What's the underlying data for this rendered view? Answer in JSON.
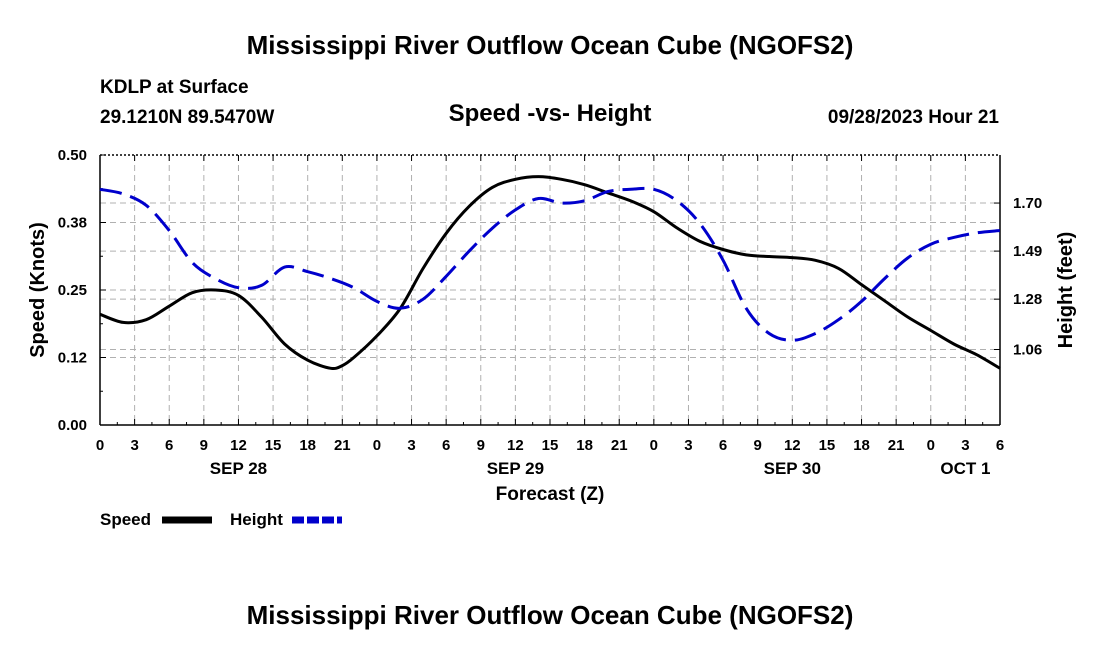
{
  "chart_data": {
    "type": "line",
    "title": "Mississippi River Outflow Ocean Cube (NGOFS2)",
    "footer_title": "Mississippi River Outflow Ocean Cube (NGOFS2)",
    "station": "KDLP at Surface",
    "location": "29.1210N  89.5470W",
    "subtitle": "Speed -vs- Height",
    "datetime": "09/28/2023 Hour 21",
    "xlabel": "Forecast (Z)",
    "ylabel_left": "Speed (Knots)",
    "ylabel_right": "Height (feet)",
    "x_hours_range": [
      0,
      78
    ],
    "x_tick_labels": [
      "0",
      "3",
      "6",
      "9",
      "12",
      "15",
      "18",
      "21",
      "0",
      "3",
      "6",
      "9",
      "12",
      "15",
      "18",
      "21",
      "0",
      "3",
      "6",
      "9",
      "12",
      "15",
      "18",
      "21",
      "0",
      "3",
      "6"
    ],
    "date_labels": [
      {
        "hour": 12,
        "label": "SEP 28"
      },
      {
        "hour": 36,
        "label": "SEP 29"
      },
      {
        "hour": 60,
        "label": "SEP 30"
      },
      {
        "hour": 75,
        "label": "OCT 1"
      }
    ],
    "ylim_left": [
      0,
      0.5
    ],
    "y_ticks_left": [
      {
        "value": 0.0,
        "label": "0.00"
      },
      {
        "value": 0.125,
        "label": "0.12"
      },
      {
        "value": 0.25,
        "label": "0.25"
      },
      {
        "value": 0.375,
        "label": "0.38"
      },
      {
        "value": 0.5,
        "label": "0.50"
      }
    ],
    "ylim_right": [
      0.73,
      1.91
    ],
    "y_ticks_right": [
      {
        "value": 1.06,
        "label": "1.06"
      },
      {
        "value": 1.28,
        "label": "1.28"
      },
      {
        "value": 1.49,
        "label": "1.49"
      },
      {
        "value": 1.7,
        "label": "1.70"
      }
    ],
    "legend": {
      "placement": "bottom-left",
      "entries": [
        "Speed",
        "Height"
      ]
    },
    "series": [
      {
        "name": "Speed",
        "axis": "left",
        "color": "#000000",
        "dash": "solid",
        "x": [
          0,
          2,
          4,
          6,
          8,
          10,
          12,
          14,
          16,
          18,
          20,
          21,
          22,
          24,
          26,
          28,
          30,
          32,
          34,
          36,
          38,
          40,
          42,
          44,
          46,
          48,
          50,
          52,
          54,
          56,
          58,
          60,
          62,
          64,
          66,
          68,
          70,
          72,
          74,
          76,
          78
        ],
        "y": [
          0.205,
          0.19,
          0.195,
          0.22,
          0.245,
          0.25,
          0.24,
          0.2,
          0.15,
          0.12,
          0.105,
          0.11,
          0.125,
          0.165,
          0.215,
          0.29,
          0.355,
          0.405,
          0.44,
          0.455,
          0.46,
          0.455,
          0.445,
          0.43,
          0.415,
          0.395,
          0.365,
          0.34,
          0.325,
          0.315,
          0.312,
          0.31,
          0.305,
          0.29,
          0.26,
          0.23,
          0.2,
          0.175,
          0.15,
          0.13,
          0.105
        ]
      },
      {
        "name": "Height",
        "axis": "right",
        "color": "#0000cc",
        "dash": "dashed",
        "x": [
          0,
          2,
          4,
          6,
          8,
          10,
          12,
          14,
          16,
          18,
          20,
          22,
          24,
          26,
          28,
          30,
          32,
          34,
          36,
          38,
          40,
          42,
          44,
          46,
          48,
          50,
          52,
          54,
          56,
          58,
          60,
          62,
          64,
          66,
          68,
          70,
          72,
          74,
          76,
          78
        ],
        "y": [
          1.76,
          1.74,
          1.69,
          1.58,
          1.44,
          1.37,
          1.33,
          1.34,
          1.42,
          1.4,
          1.37,
          1.33,
          1.27,
          1.24,
          1.28,
          1.38,
          1.49,
          1.59,
          1.67,
          1.72,
          1.7,
          1.71,
          1.75,
          1.76,
          1.76,
          1.71,
          1.61,
          1.45,
          1.24,
          1.13,
          1.1,
          1.13,
          1.19,
          1.27,
          1.37,
          1.46,
          1.52,
          1.55,
          1.57,
          1.58
        ]
      }
    ]
  }
}
